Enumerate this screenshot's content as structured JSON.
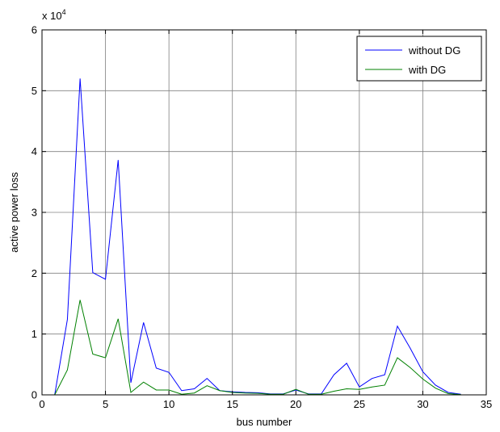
{
  "chart_data": {
    "type": "line",
    "xlabel": "bus number",
    "ylabel": "active power loss",
    "y_multiplier_label": "x 10",
    "y_multiplier_exponent": "4",
    "xlim": [
      0,
      35
    ],
    "ylim": [
      0,
      60000
    ],
    "xticks": [
      0,
      5,
      10,
      15,
      20,
      25,
      30,
      35
    ],
    "yticks": [
      0,
      10000,
      20000,
      30000,
      40000,
      50000,
      60000
    ],
    "xtick_labels": [
      "0",
      "5",
      "10",
      "15",
      "20",
      "25",
      "30",
      "35"
    ],
    "ytick_labels": [
      "0",
      "1",
      "2",
      "3",
      "4",
      "5",
      "6"
    ],
    "grid": true,
    "legend_position": "top-right",
    "series": [
      {
        "name": "without DG",
        "color": "#0000ff",
        "x": [
          1,
          2,
          3,
          4,
          5,
          6,
          7,
          8,
          9,
          10,
          11,
          12,
          13,
          14,
          15,
          16,
          17,
          18,
          19,
          20,
          21,
          22,
          23,
          24,
          25,
          26,
          27,
          28,
          29,
          30,
          31,
          32,
          33
        ],
        "y": [
          0,
          12400,
          52000,
          20100,
          19000,
          38600,
          2000,
          11900,
          4400,
          3700,
          700,
          1000,
          2700,
          700,
          500,
          400,
          350,
          150,
          150,
          800,
          150,
          150,
          3300,
          5200,
          1300,
          2700,
          3300,
          11300,
          7700,
          3800,
          1600,
          400,
          100
        ]
      },
      {
        "name": "with DG",
        "color": "#008000",
        "x": [
          1,
          2,
          3,
          4,
          5,
          6,
          7,
          8,
          9,
          10,
          11,
          12,
          13,
          14,
          15,
          16,
          17,
          18,
          19,
          20,
          21,
          22,
          23,
          24,
          25,
          26,
          27,
          28,
          29,
          30,
          31,
          32,
          33
        ],
        "y": [
          0,
          4100,
          15600,
          6700,
          6100,
          12500,
          400,
          2100,
          800,
          800,
          100,
          300,
          1500,
          700,
          400,
          300,
          250,
          100,
          100,
          900,
          100,
          100,
          600,
          1000,
          900,
          1300,
          1600,
          6100,
          4500,
          2600,
          1100,
          200,
          50
        ]
      }
    ]
  }
}
